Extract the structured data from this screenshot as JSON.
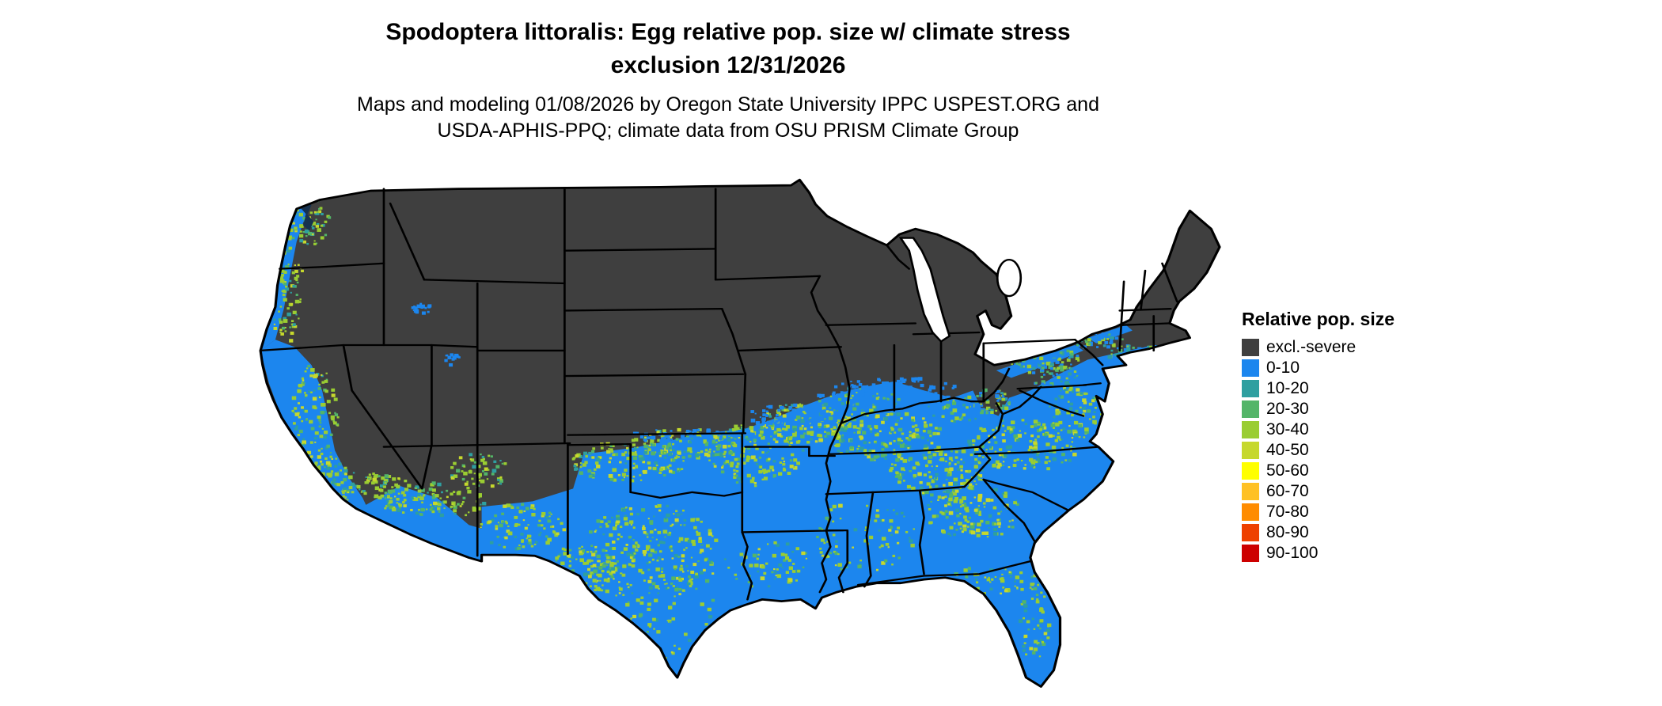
{
  "title": {
    "line1": "Spodoptera littoralis: Egg relative pop. size w/ climate stress",
    "line2": "exclusion 12/31/2026"
  },
  "subtitle": {
    "line1": "Maps and modeling 01/08/2026 by Oregon State University IPPC USPEST.ORG and",
    "line2": "USDA-APHIS-PPQ; climate data from OSU PRISM Climate Group"
  },
  "map": {
    "area": "Continental United States"
  },
  "legend": {
    "title": "Relative pop. size",
    "entries": [
      {
        "label": "excl.-severe",
        "color": "#3f3f3f"
      },
      {
        "label": "0-10",
        "color": "#1c86ee"
      },
      {
        "label": "10-20",
        "color": "#2e9fa0"
      },
      {
        "label": "20-30",
        "color": "#53b568"
      },
      {
        "label": "30-40",
        "color": "#9acd32"
      },
      {
        "label": "40-50",
        "color": "#c6d82d"
      },
      {
        "label": "50-60",
        "color": "#ffff00"
      },
      {
        "label": "60-70",
        "color": "#ffc125"
      },
      {
        "label": "70-80",
        "color": "#ff8c00"
      },
      {
        "label": "80-90",
        "color": "#ee4000"
      },
      {
        "label": "90-100",
        "color": "#cd0000"
      }
    ]
  }
}
